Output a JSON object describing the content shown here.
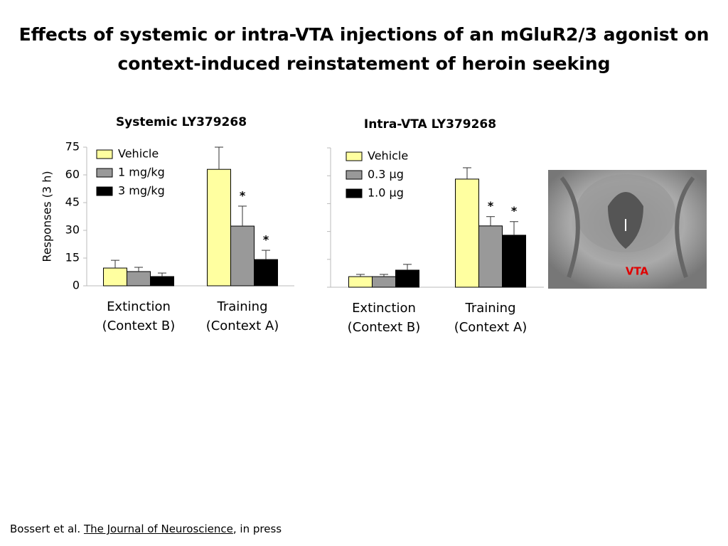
{
  "slide_title": "Effects of systemic or intra-VTA injections of an mGluR2/3 agonist on context-induced reinstatement of heroin seeking",
  "chart_data": [
    {
      "type": "bar",
      "title": "Systemic LY379268",
      "y_label": "Responses (3 h)",
      "categories": [
        "Extinction (Context B)",
        "Training (Context A)"
      ],
      "series": [
        {
          "name": "Vehicle",
          "color": "#ffffa0",
          "values": [
            9.6,
            63
          ],
          "errors": [
            4.2,
            12
          ]
        },
        {
          "name": "1 mg/kg",
          "color": "#999999",
          "values": [
            7.7,
            32.3
          ],
          "errors": [
            2.3,
            10.8
          ]
        },
        {
          "name": "3 mg/kg",
          "color": "#000000",
          "values": [
            5,
            14.2
          ],
          "errors": [
            1.9,
            5
          ]
        }
      ],
      "annotations": [
        {
          "text": "*",
          "series": 1,
          "category": 1
        },
        {
          "text": "*",
          "series": 2,
          "category": 1
        }
      ],
      "ylim": [
        0,
        75
      ],
      "yticks": [
        0,
        15,
        30,
        45,
        60,
        75
      ],
      "show_ytick_labels": true
    },
    {
      "type": "bar",
      "title": "Intra-VTA LY379268",
      "categories": [
        "Extinction (Context B)",
        "Training (Context A)"
      ],
      "series": [
        {
          "name": "Vehicle",
          "color": "#ffffa0",
          "values": [
            5.7,
            58.2
          ],
          "errors": [
            1.2,
            6.1
          ]
        },
        {
          "name": "0.3 μg",
          "color": "#999999",
          "values": [
            5.7,
            33
          ],
          "errors": [
            1.2,
            5
          ]
        },
        {
          "name": "1.0 μg",
          "color": "#000000",
          "values": [
            9.2,
            28
          ],
          "errors": [
            3.1,
            7.3
          ]
        }
      ],
      "annotations": [
        {
          "text": "*",
          "series": 1,
          "category": 1
        },
        {
          "text": "*",
          "series": 2,
          "category": 1
        }
      ],
      "ylim": [
        0,
        75
      ],
      "yticks": [
        0,
        15,
        30,
        45,
        60,
        75
      ],
      "show_ytick_labels": false
    }
  ],
  "image": {
    "label": "VTA"
  },
  "citation": {
    "authors": "Bossert et al.",
    "journal": "The Journal of Neuroscience",
    "status": ", in press"
  }
}
